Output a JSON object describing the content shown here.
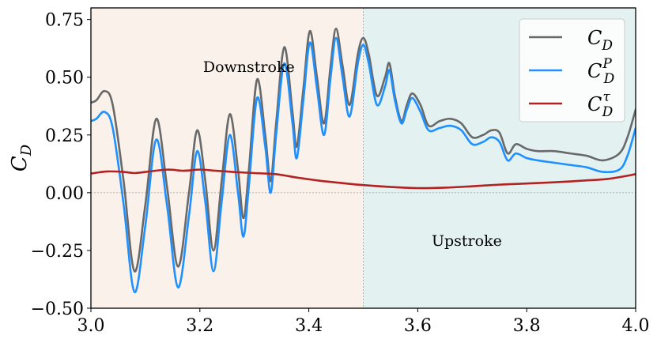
{
  "chart_data": {
    "type": "line",
    "title": "",
    "xlabel": "",
    "ylabel": "C_D",
    "xlim": [
      3.0,
      4.0
    ],
    "ylim": [
      -0.5,
      0.8
    ],
    "xticks": [
      "3.0",
      "3.2",
      "3.4",
      "3.6",
      "3.8",
      "4.0"
    ],
    "yticks": [
      "−0.50",
      "−0.25",
      "0.00",
      "0.25",
      "0.50",
      "0.75"
    ],
    "grid": false,
    "legend_position": "top-right",
    "regions": [
      {
        "label": "Downstroke",
        "x_start": 3.0,
        "x_end": 3.5,
        "color": "#f9f1ea"
      },
      {
        "label": "Upstroke",
        "x_start": 3.5,
        "x_end": 4.0,
        "color": "#e3f1f1"
      }
    ],
    "reference_lines": [
      {
        "orientation": "horizontal",
        "value": 0.0
      },
      {
        "orientation": "vertical",
        "value": 3.5
      }
    ],
    "series": [
      {
        "name": "C_D",
        "legend_main": "C",
        "legend_sub": "D",
        "legend_sup": "",
        "color": "#696969",
        "points": [
          [
            3.0,
            0.39
          ],
          [
            3.01,
            0.4
          ],
          [
            3.025,
            0.44
          ],
          [
            3.04,
            0.38
          ],
          [
            3.06,
            0.05
          ],
          [
            3.08,
            -0.34
          ],
          [
            3.1,
            -0.05
          ],
          [
            3.12,
            0.32
          ],
          [
            3.14,
            0.02
          ],
          [
            3.16,
            -0.32
          ],
          [
            3.18,
            0.0
          ],
          [
            3.195,
            0.27
          ],
          [
            3.21,
            0.05
          ],
          [
            3.225,
            -0.25
          ],
          [
            3.24,
            0.05
          ],
          [
            3.255,
            0.34
          ],
          [
            3.27,
            0.1
          ],
          [
            3.28,
            -0.11
          ],
          [
            3.29,
            0.1
          ],
          [
            3.305,
            0.49
          ],
          [
            3.32,
            0.25
          ],
          [
            3.33,
            0.05
          ],
          [
            3.34,
            0.3
          ],
          [
            3.355,
            0.63
          ],
          [
            3.37,
            0.35
          ],
          [
            3.378,
            0.2
          ],
          [
            3.39,
            0.45
          ],
          [
            3.402,
            0.7
          ],
          [
            3.415,
            0.5
          ],
          [
            3.428,
            0.3
          ],
          [
            3.44,
            0.55
          ],
          [
            3.45,
            0.71
          ],
          [
            3.462,
            0.55
          ],
          [
            3.475,
            0.38
          ],
          [
            3.49,
            0.6
          ],
          [
            3.5,
            0.67
          ],
          [
            3.51,
            0.6
          ],
          [
            3.525,
            0.42
          ],
          [
            3.54,
            0.5
          ],
          [
            3.548,
            0.56
          ],
          [
            3.558,
            0.42
          ],
          [
            3.57,
            0.31
          ],
          [
            3.58,
            0.38
          ],
          [
            3.59,
            0.43
          ],
          [
            3.605,
            0.38
          ],
          [
            3.62,
            0.29
          ],
          [
            3.64,
            0.31
          ],
          [
            3.66,
            0.32
          ],
          [
            3.68,
            0.3
          ],
          [
            3.7,
            0.24
          ],
          [
            3.72,
            0.25
          ],
          [
            3.735,
            0.27
          ],
          [
            3.75,
            0.26
          ],
          [
            3.765,
            0.17
          ],
          [
            3.78,
            0.21
          ],
          [
            3.8,
            0.19
          ],
          [
            3.82,
            0.18
          ],
          [
            3.85,
            0.18
          ],
          [
            3.88,
            0.17
          ],
          [
            3.91,
            0.16
          ],
          [
            3.94,
            0.14
          ],
          [
            3.97,
            0.17
          ],
          [
            3.985,
            0.24
          ],
          [
            4.0,
            0.36
          ]
        ]
      },
      {
        "name": "C_D^P",
        "legend_main": "C",
        "legend_sub": "D",
        "legend_sup": "P",
        "color": "#1e90ff",
        "points": [
          [
            3.0,
            0.31
          ],
          [
            3.01,
            0.32
          ],
          [
            3.025,
            0.35
          ],
          [
            3.04,
            0.28
          ],
          [
            3.06,
            -0.05
          ],
          [
            3.08,
            -0.43
          ],
          [
            3.1,
            -0.14
          ],
          [
            3.12,
            0.23
          ],
          [
            3.14,
            -0.06
          ],
          [
            3.16,
            -0.41
          ],
          [
            3.18,
            -0.1
          ],
          [
            3.195,
            0.18
          ],
          [
            3.21,
            -0.04
          ],
          [
            3.225,
            -0.34
          ],
          [
            3.24,
            -0.04
          ],
          [
            3.255,
            0.25
          ],
          [
            3.27,
            0.0
          ],
          [
            3.28,
            -0.19
          ],
          [
            3.29,
            0.03
          ],
          [
            3.305,
            0.41
          ],
          [
            3.32,
            0.2
          ],
          [
            3.33,
            0.0
          ],
          [
            3.34,
            0.25
          ],
          [
            3.355,
            0.56
          ],
          [
            3.37,
            0.3
          ],
          [
            3.378,
            0.15
          ],
          [
            3.39,
            0.4
          ],
          [
            3.402,
            0.65
          ],
          [
            3.415,
            0.45
          ],
          [
            3.428,
            0.25
          ],
          [
            3.44,
            0.5
          ],
          [
            3.45,
            0.67
          ],
          [
            3.462,
            0.5
          ],
          [
            3.475,
            0.33
          ],
          [
            3.49,
            0.56
          ],
          [
            3.5,
            0.64
          ],
          [
            3.51,
            0.56
          ],
          [
            3.525,
            0.38
          ],
          [
            3.54,
            0.46
          ],
          [
            3.548,
            0.53
          ],
          [
            3.558,
            0.4
          ],
          [
            3.57,
            0.3
          ],
          [
            3.58,
            0.36
          ],
          [
            3.59,
            0.41
          ],
          [
            3.605,
            0.35
          ],
          [
            3.62,
            0.27
          ],
          [
            3.64,
            0.28
          ],
          [
            3.66,
            0.29
          ],
          [
            3.68,
            0.27
          ],
          [
            3.7,
            0.21
          ],
          [
            3.72,
            0.22
          ],
          [
            3.735,
            0.24
          ],
          [
            3.75,
            0.22
          ],
          [
            3.765,
            0.14
          ],
          [
            3.78,
            0.17
          ],
          [
            3.8,
            0.15
          ],
          [
            3.82,
            0.14
          ],
          [
            3.85,
            0.13
          ],
          [
            3.88,
            0.12
          ],
          [
            3.91,
            0.11
          ],
          [
            3.94,
            0.09
          ],
          [
            3.97,
            0.1
          ],
          [
            3.985,
            0.16
          ],
          [
            4.0,
            0.28
          ]
        ]
      },
      {
        "name": "C_D^τ",
        "legend_main": "C",
        "legend_sub": "D",
        "legend_sup": "τ",
        "color": "#b22222",
        "points": [
          [
            3.0,
            0.083
          ],
          [
            3.03,
            0.092
          ],
          [
            3.06,
            0.09
          ],
          [
            3.08,
            0.085
          ],
          [
            3.1,
            0.09
          ],
          [
            3.14,
            0.1
          ],
          [
            3.17,
            0.095
          ],
          [
            3.2,
            0.1
          ],
          [
            3.23,
            0.095
          ],
          [
            3.26,
            0.09
          ],
          [
            3.3,
            0.085
          ],
          [
            3.34,
            0.08
          ],
          [
            3.38,
            0.065
          ],
          [
            3.42,
            0.052
          ],
          [
            3.46,
            0.042
          ],
          [
            3.5,
            0.033
          ],
          [
            3.55,
            0.025
          ],
          [
            3.6,
            0.02
          ],
          [
            3.65,
            0.022
          ],
          [
            3.7,
            0.028
          ],
          [
            3.75,
            0.035
          ],
          [
            3.8,
            0.04
          ],
          [
            3.85,
            0.045
          ],
          [
            3.9,
            0.052
          ],
          [
            3.95,
            0.06
          ],
          [
            4.0,
            0.08
          ]
        ]
      }
    ]
  }
}
